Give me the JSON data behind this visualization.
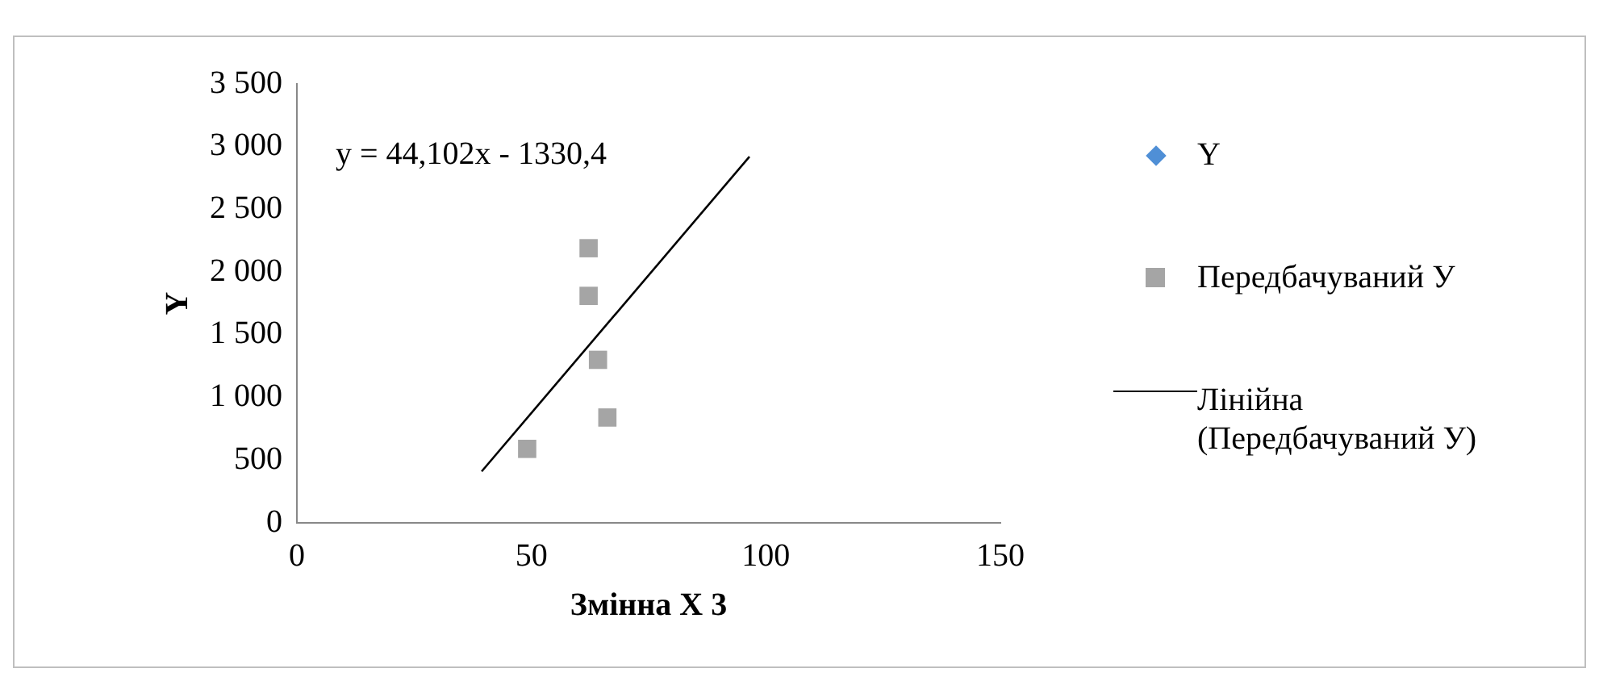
{
  "chart_data": {
    "type": "scatter",
    "xlabel": "Змінна X 3",
    "ylabel": "Y",
    "xlim": [
      0,
      150
    ],
    "xticks": [
      0,
      50,
      100,
      150
    ],
    "ylim": [
      0,
      3500
    ],
    "yticks": [
      0,
      500,
      {
        "value": 1000,
        "label": "1 000"
      },
      {
        "value": 1500,
        "label": "1 500"
      },
      {
        "value": 2000,
        "label": "2 000"
      },
      {
        "value": 2500,
        "label": "2 500"
      },
      {
        "value": 3000,
        "label": "3 000"
      },
      {
        "value": 3500,
        "label": "3 500"
      }
    ],
    "grid": false,
    "legend": "right",
    "annotations": [
      "y = 44,102x - 1330,4"
    ],
    "series": [
      {
        "name": "Y",
        "color": "#4f8fd6",
        "marker": "diamond"
      },
      {
        "name": "Передбачуваний У",
        "color": "#a5a5a5",
        "marker": "square",
        "x": [
          49.1,
          62.2,
          62.2,
          64.2,
          66.2
        ],
        "values": [
          590,
          2190,
          1810,
          1300,
          840
        ]
      },
      {
        "name": "Лінійна (Передбачуваний У)",
        "type": "line",
        "color": "#000000",
        "marker": "none",
        "x": [
          39.4,
          96.5
        ],
        "values": [
          410,
          2920
        ]
      }
    ]
  }
}
